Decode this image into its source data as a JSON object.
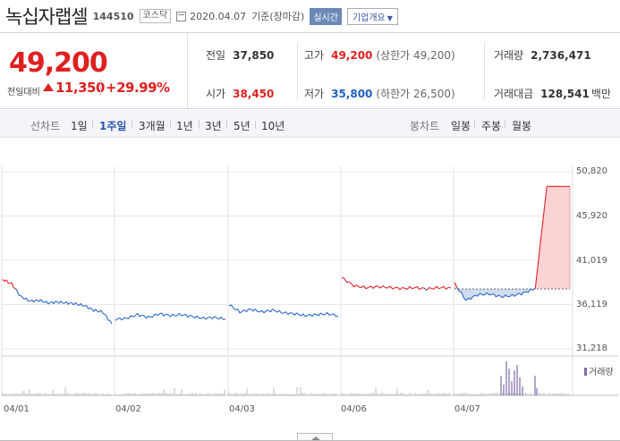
{
  "header": {
    "title": "녹십자랩셀",
    "code": "144510",
    "market": "코스닥",
    "date": "2020.04.07",
    "date_suffix": "기준(장마감)",
    "realtime_label": "실시간",
    "company_info_label": "기업개요"
  },
  "quote": {
    "price": "49,200",
    "change_label": "전일대비",
    "change": "11,350",
    "change_pct": "+29.99%",
    "prev_close_label": "전일",
    "prev_close": "37,850",
    "open_label": "시가",
    "open": "38,450",
    "high_label": "고가",
    "high": "49,200",
    "upper_limit": "(상한가 49,200)",
    "low_label": "저가",
    "low": "35,800",
    "lower_limit": "(하한가 26,500)",
    "volume_label": "거래량",
    "volume": "2,736,471",
    "amount_label": "거래대금",
    "amount": "128,541",
    "amount_unit": "백만",
    "colors": {
      "up": "#e02020",
      "down": "#2060c0"
    }
  },
  "tabs": {
    "line_label": "선차트",
    "line_items": [
      "1일",
      "1주일",
      "3개월",
      "1년",
      "3년",
      "5년",
      "10년"
    ],
    "active": "1주일",
    "candle_label": "봉차트",
    "candle_items": [
      "일봉",
      "주봉",
      "월봉"
    ]
  },
  "chart_data": {
    "type": "line",
    "ylim": [
      31218,
      50820
    ],
    "yticks": [
      "50,820",
      "45,920",
      "41,019",
      "36,119",
      "31,218"
    ],
    "xticks": [
      "04/01",
      "04/02",
      "04/03",
      "04/06",
      "04/07"
    ],
    "reference_price": 37850,
    "series": [
      {
        "day": "04/01",
        "values": [
          38900,
          38400,
          37000,
          36500,
          36600,
          36300,
          36400,
          36300,
          36200,
          36000,
          35500,
          35300,
          34000
        ]
      },
      {
        "day": "04/02",
        "values": [
          34500,
          34600,
          35000,
          34700,
          35100,
          34900,
          35000,
          34800,
          34600,
          34700,
          34500
        ]
      },
      {
        "day": "04/03",
        "values": [
          36100,
          35300,
          35600,
          35300,
          35500,
          35200,
          35100,
          34900,
          35000,
          35100,
          34900
        ]
      },
      {
        "day": "04/06",
        "values": [
          39100,
          38200,
          38000,
          38100,
          38000,
          37900,
          38000,
          37850,
          38000,
          37950
        ]
      },
      {
        "day": "04/07",
        "values": [
          38450,
          36600,
          37200,
          37300,
          37000,
          37100,
          37400,
          37900,
          49200,
          49200,
          49200
        ]
      }
    ],
    "volume_legend": "거래량",
    "volume_colors": {
      "bar": "#7b6aa8",
      "base": "#bbbbbb"
    }
  }
}
